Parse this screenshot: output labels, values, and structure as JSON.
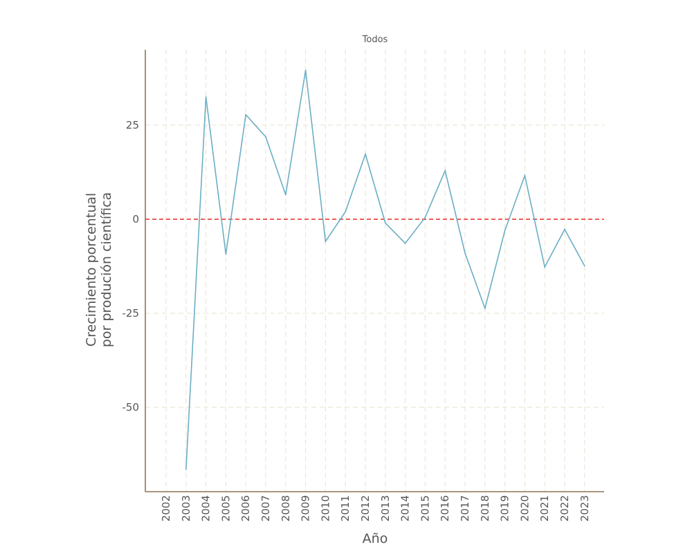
{
  "chart_data": {
    "type": "line",
    "title": "Todos",
    "xlabel": "Año",
    "ylabel_line1": "Crecimiento porcentual",
    "ylabel_line2": "por produción científica",
    "x": [
      "2002",
      "2003",
      "2004",
      "2005",
      "2006",
      "2007",
      "2008",
      "2009",
      "2010",
      "2011",
      "2012",
      "2013",
      "2014",
      "2015",
      "2016",
      "2017",
      "2018",
      "2019",
      "2020",
      "2021",
      "2022",
      "2023"
    ],
    "series": [
      {
        "values": [
          null,
          -66.5,
          32.5,
          -9.3,
          27.8,
          21.9,
          6.5,
          39.6,
          -5.9,
          2.0,
          17.3,
          -1.0,
          -6.4,
          0.5,
          12.9,
          -9.0,
          -23.7,
          -3.0,
          11.6,
          -12.7,
          -2.7,
          -12.4
        ],
        "color": "#6aaec4"
      }
    ],
    "reference_line": {
      "y": 0,
      "color": "#e8271f",
      "style": "dashed"
    },
    "yticks": [
      25,
      0,
      -25,
      -50
    ],
    "ytick_labels": [
      "25",
      "0",
      "-25",
      "-50"
    ],
    "ylim": [
      -71,
      42
    ],
    "grid": true,
    "grid_color": "#ece6d6",
    "axis_color": "#8b7355"
  }
}
